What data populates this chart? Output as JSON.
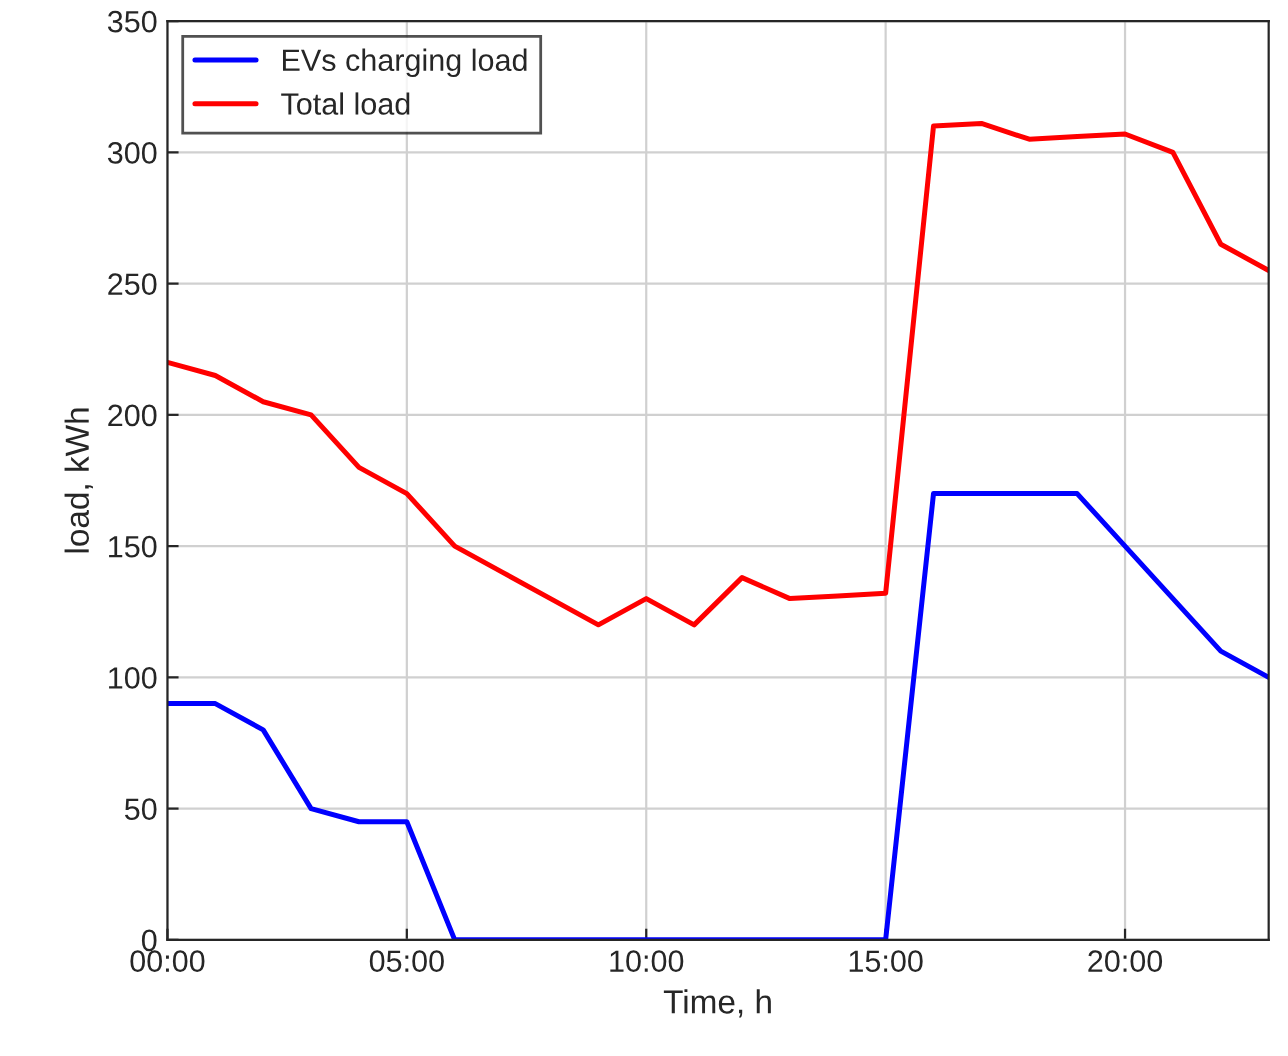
{
  "chart_data": {
    "type": "line",
    "xlabel": "Time, h",
    "ylabel": "load, kWh",
    "x": [
      0,
      1,
      2,
      3,
      4,
      5,
      6,
      7,
      8,
      9,
      10,
      11,
      12,
      13,
      14,
      15,
      16,
      17,
      18,
      19,
      20,
      21,
      22,
      23
    ],
    "series": [
      {
        "name": "EVs charging load",
        "color": "#0000ff",
        "values": [
          90,
          90,
          80,
          50,
          45,
          45,
          0,
          0,
          0,
          0,
          0,
          0,
          0,
          0,
          0,
          0,
          170,
          170,
          170,
          170,
          150,
          130,
          110,
          100
        ]
      },
      {
        "name": "Total load",
        "color": "#ff0000",
        "values": [
          220,
          215,
          205,
          200,
          180,
          170,
          150,
          140,
          130,
          120,
          130,
          120,
          138,
          130,
          131,
          132,
          310,
          311,
          305,
          306,
          307,
          300,
          265,
          255
        ]
      }
    ],
    "xlim": [
      0,
      23
    ],
    "ylim": [
      0,
      350
    ],
    "xticks": [
      {
        "value": 0,
        "label": "00:00"
      },
      {
        "value": 5,
        "label": "05:00"
      },
      {
        "value": 10,
        "label": "10:00"
      },
      {
        "value": 15,
        "label": "15:00"
      },
      {
        "value": 20,
        "label": "20:00"
      }
    ],
    "yticks": [
      0,
      50,
      100,
      150,
      200,
      250,
      300,
      350
    ],
    "grid": true,
    "legend": "top left",
    "marker": "none",
    "line_style": "solid"
  }
}
